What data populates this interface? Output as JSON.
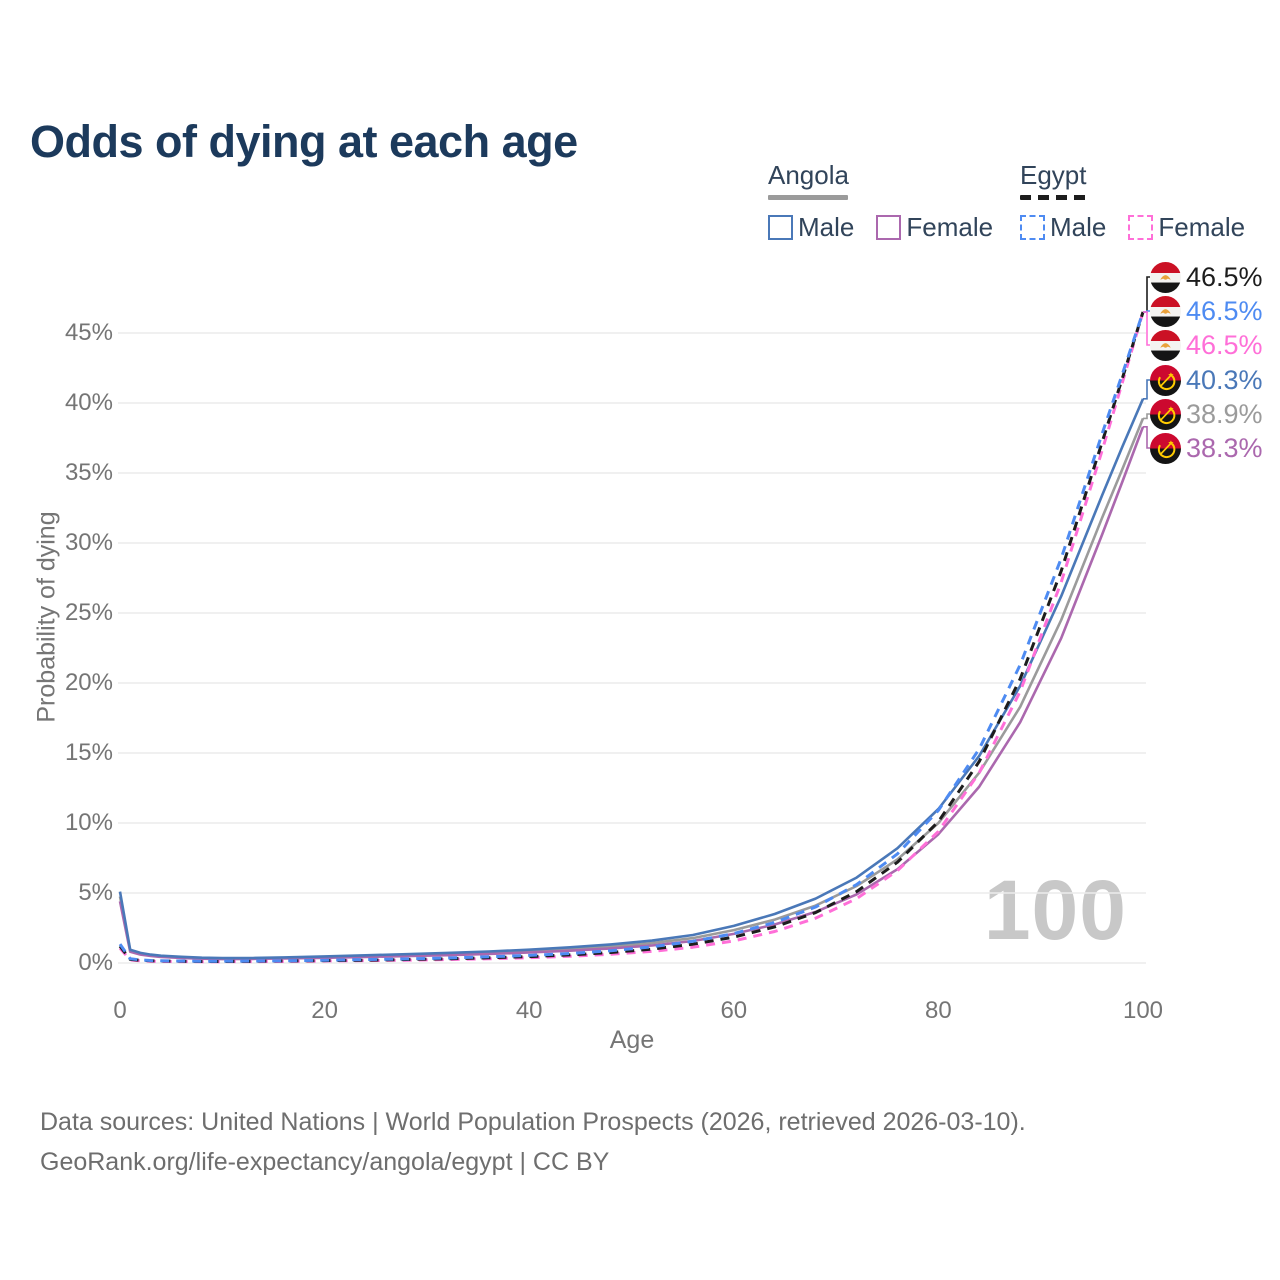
{
  "title": "Odds of dying at each age",
  "legend": {
    "groups": [
      {
        "name": "Angola",
        "underline_style": "solid",
        "underline_color_key": "angola_total",
        "items": [
          {
            "label": "Male",
            "color_key": "angola_male",
            "style": "solid"
          },
          {
            "label": "Female",
            "color_key": "angola_female",
            "style": "solid"
          }
        ]
      },
      {
        "name": "Egypt",
        "underline_style": "dashed",
        "underline_color_key": "egypt_total",
        "items": [
          {
            "label": "Male",
            "color_key": "egypt_male",
            "style": "dashed"
          },
          {
            "label": "Female",
            "color_key": "egypt_female",
            "style": "dashed"
          }
        ]
      }
    ]
  },
  "chart_data": {
    "type": "line",
    "title": "Odds of dying at each age",
    "xlabel": "Age",
    "ylabel": "Probability of dying",
    "x_ticks": [
      0,
      20,
      40,
      60,
      80,
      100
    ],
    "y_ticks": [
      0,
      5,
      10,
      15,
      20,
      25,
      30,
      35,
      40,
      45
    ],
    "y_tick_suffix": "%",
    "xlim": [
      0,
      100
    ],
    "ylim": [
      0,
      48
    ],
    "grid": "horizontal",
    "legend_position": "top-right",
    "watermark": "100",
    "ages": [
      0,
      1,
      2,
      3,
      4,
      6,
      8,
      10,
      13,
      16,
      20,
      24,
      28,
      32,
      36,
      40,
      44,
      48,
      52,
      56,
      60,
      64,
      68,
      72,
      76,
      80,
      84,
      88,
      92,
      96,
      98,
      100
    ],
    "series": [
      {
        "id": "angola_total",
        "name": "Angola",
        "country": "Angola",
        "sex": "Both",
        "style": "solid",
        "color_key": "angola_total",
        "end_label": "38.9%",
        "values": [
          4.75,
          0.88,
          0.66,
          0.55,
          0.48,
          0.4,
          0.35,
          0.32,
          0.33,
          0.36,
          0.42,
          0.49,
          0.56,
          0.64,
          0.73,
          0.85,
          1.0,
          1.18,
          1.42,
          1.78,
          2.35,
          3.1,
          4.1,
          5.5,
          7.4,
          10.0,
          13.6,
          18.3,
          24.5,
          31.8,
          35.3,
          38.9
        ]
      },
      {
        "id": "angola_female",
        "name": "Angola Female",
        "country": "Angola",
        "sex": "Female",
        "style": "solid",
        "color_key": "angola_female",
        "end_label": "38.3%",
        "values": [
          4.4,
          0.8,
          0.6,
          0.5,
          0.43,
          0.36,
          0.31,
          0.28,
          0.29,
          0.32,
          0.37,
          0.43,
          0.49,
          0.56,
          0.64,
          0.75,
          0.88,
          1.04,
          1.25,
          1.57,
          2.08,
          2.75,
          3.65,
          4.9,
          6.7,
          9.2,
          12.6,
          17.2,
          23.2,
          30.6,
          34.4,
          38.3
        ]
      },
      {
        "id": "angola_male",
        "name": "Angola Male",
        "country": "Angola",
        "sex": "Male",
        "style": "solid",
        "color_key": "angola_male",
        "end_label": "40.3%",
        "values": [
          5.1,
          0.95,
          0.72,
          0.6,
          0.52,
          0.44,
          0.38,
          0.35,
          0.36,
          0.4,
          0.47,
          0.55,
          0.63,
          0.72,
          0.82,
          0.95,
          1.12,
          1.33,
          1.6,
          2.0,
          2.65,
          3.5,
          4.6,
          6.1,
          8.2,
          11.0,
          14.8,
          19.8,
          26.2,
          33.4,
          36.9,
          40.3
        ]
      },
      {
        "id": "egypt_female",
        "name": "Egypt Female",
        "country": "Egypt",
        "sex": "Female",
        "style": "dashed",
        "color_key": "egypt_female",
        "end_label": "46.5%",
        "values": [
          1.05,
          0.22,
          0.16,
          0.13,
          0.11,
          0.1,
          0.09,
          0.09,
          0.1,
          0.11,
          0.14,
          0.17,
          0.2,
          0.25,
          0.3,
          0.38,
          0.48,
          0.63,
          0.83,
          1.13,
          1.58,
          2.25,
          3.2,
          4.6,
          6.6,
          9.4,
          13.6,
          19.4,
          27.2,
          36.6,
          41.5,
          46.5
        ]
      },
      {
        "id": "egypt_total",
        "name": "Egypt",
        "country": "Egypt",
        "sex": "Both",
        "style": "dashed",
        "color_key": "egypt_total",
        "end_label": "46.5%",
        "values": [
          1.2,
          0.26,
          0.19,
          0.16,
          0.14,
          0.12,
          0.11,
          0.11,
          0.12,
          0.14,
          0.17,
          0.2,
          0.25,
          0.3,
          0.37,
          0.46,
          0.58,
          0.75,
          0.99,
          1.34,
          1.85,
          2.58,
          3.6,
          5.1,
          7.2,
          10.1,
          14.4,
          20.3,
          28.0,
          37.2,
          41.8,
          46.5
        ]
      },
      {
        "id": "egypt_male",
        "name": "Egypt Male",
        "country": "Egypt",
        "sex": "Male",
        "style": "dashed",
        "color_key": "egypt_male",
        "end_label": "46.5%",
        "values": [
          1.35,
          0.3,
          0.22,
          0.18,
          0.16,
          0.14,
          0.13,
          0.13,
          0.14,
          0.16,
          0.2,
          0.24,
          0.29,
          0.36,
          0.44,
          0.54,
          0.68,
          0.88,
          1.16,
          1.55,
          2.1,
          2.9,
          4.0,
          5.6,
          7.8,
          10.9,
          15.3,
          21.3,
          28.9,
          37.8,
          42.1,
          46.5
        ]
      }
    ],
    "end_labels": [
      {
        "series": "egypt_total",
        "flag": "egypt",
        "value": "46.5%"
      },
      {
        "series": "egypt_male",
        "flag": "egypt",
        "value": "46.5%"
      },
      {
        "series": "egypt_female",
        "flag": "egypt",
        "value": "46.5%"
      },
      {
        "series": "angola_male",
        "flag": "angola",
        "value": "40.3%"
      },
      {
        "series": "angola_total",
        "flag": "angola",
        "value": "38.9%"
      },
      {
        "series": "angola_female",
        "flag": "angola",
        "value": "38.3%"
      }
    ]
  },
  "footer": {
    "line1": "Data sources: United Nations | World Population Prospects (2026, retrieved 2026-03-10).",
    "line2": "GeoRank.org/life-expectancy/angola/egypt | CC BY"
  },
  "colors": {
    "angola_male": "#4a78b8",
    "angola_female": "#ab68ae",
    "angola_total": "#9b9b9b",
    "egypt_male": "#4e8bf2",
    "egypt_female": "#ff6fd8",
    "egypt_total": "#1d1d1d",
    "title": "#1c3a5c",
    "axis_text": "#757575",
    "grid": "#ececec",
    "watermark": "#c8c8c8",
    "footer_text": "#6e6e6e",
    "flag_egypt_red": "#cb1125",
    "flag_egypt_gold": "#e9a13b",
    "flag_angola_red": "#cc092f",
    "flag_angola_yellow": "#ffcb00"
  }
}
